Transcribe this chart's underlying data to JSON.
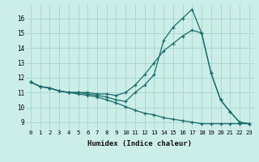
{
  "background_color": "#cceee8",
  "grid_color": "#aad8d0",
  "line_color": "#1a6b6b",
  "xlabel": "Humidex (Indice chaleur)",
  "xlim": [
    -0.5,
    23.5
  ],
  "ylim": [
    8.5,
    16.9
  ],
  "yticks": [
    9,
    10,
    11,
    12,
    13,
    14,
    15,
    16
  ],
  "xticks": [
    0,
    1,
    2,
    3,
    4,
    5,
    6,
    7,
    8,
    9,
    10,
    11,
    12,
    13,
    14,
    15,
    16,
    17,
    18,
    19,
    20,
    21,
    22,
    23
  ],
  "series": [
    {
      "x": [
        0,
        1,
        2,
        3,
        4,
        5,
        6,
        7,
        8,
        9,
        10,
        11,
        12,
        13,
        14,
        15,
        16,
        17,
        18,
        19,
        20,
        21,
        22,
        23
      ],
      "y": [
        11.7,
        11.4,
        11.3,
        11.1,
        11.0,
        11.0,
        10.9,
        10.8,
        10.7,
        10.5,
        10.4,
        11.0,
        11.5,
        12.2,
        14.5,
        15.4,
        16.0,
        16.6,
        15.0,
        12.3,
        10.5,
        9.7,
        9.0,
        8.9
      ]
    },
    {
      "x": [
        0,
        1,
        2,
        3,
        4,
        5,
        6,
        7,
        8,
        9,
        10,
        11,
        12,
        13,
        14,
        15,
        16,
        17,
        18,
        19,
        20,
        21,
        22,
        23
      ],
      "y": [
        11.7,
        11.4,
        11.3,
        11.1,
        11.0,
        11.0,
        11.0,
        10.9,
        10.9,
        10.8,
        11.0,
        11.5,
        12.2,
        13.0,
        13.8,
        14.3,
        14.8,
        15.2,
        15.0,
        12.3,
        10.5,
        9.7,
        9.0,
        8.9
      ]
    },
    {
      "x": [
        0,
        1,
        2,
        3,
        4,
        5,
        6,
        7,
        8,
        9,
        10,
        11,
        12,
        13,
        14,
        15,
        16,
        17,
        18,
        19,
        20,
        21,
        22,
        23
      ],
      "y": [
        11.7,
        11.4,
        11.3,
        11.1,
        11.0,
        10.9,
        10.8,
        10.7,
        10.5,
        10.3,
        10.05,
        9.8,
        9.6,
        9.5,
        9.3,
        9.2,
        9.1,
        9.0,
        8.9,
        8.9,
        8.9,
        8.9,
        8.9,
        8.9
      ]
    }
  ]
}
